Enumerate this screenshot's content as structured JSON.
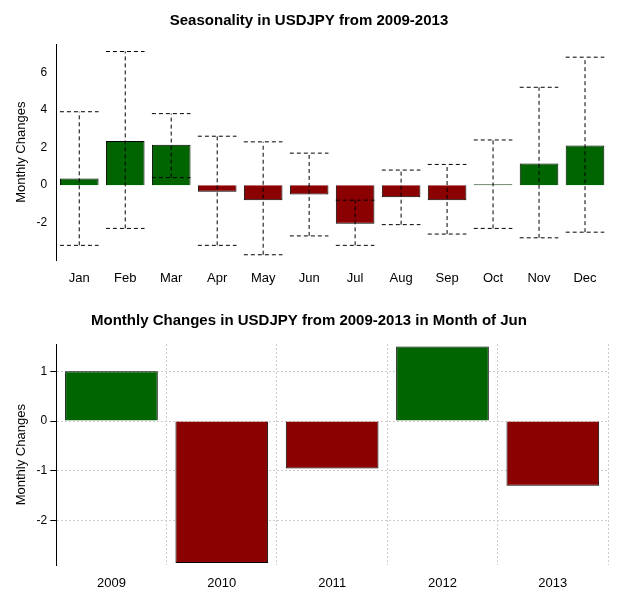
{
  "chart_data": [
    {
      "type": "bar",
      "title": "Seasonality in USDJPY from 2009-2013",
      "ylabel": "Monthly Changes",
      "categories": [
        "Jan",
        "Feb",
        "Mar",
        "Apr",
        "May",
        "Jun",
        "Jul",
        "Aug",
        "Sep",
        "Oct",
        "Nov",
        "Dec"
      ],
      "values": [
        0.35,
        2.35,
        2.15,
        -0.35,
        -0.8,
        -0.5,
        -2.05,
        -0.65,
        -0.8,
        0.05,
        1.15,
        2.1
      ],
      "error_low": [
        -3.2,
        -2.3,
        0.4,
        -3.2,
        -3.7,
        -2.7,
        -3.2,
        -2.1,
        -2.6,
        -2.3,
        -2.8,
        -2.5
      ],
      "error_high": [
        3.9,
        7.1,
        3.8,
        2.6,
        2.3,
        1.7,
        -0.8,
        0.8,
        1.1,
        2.4,
        5.2,
        6.8
      ],
      "colors": [
        "#006400",
        "#006400",
        "#006400",
        "#8b0000",
        "#8b0000",
        "#8b0000",
        "#8b0000",
        "#8b0000",
        "#8b0000",
        "#006400",
        "#006400",
        "#006400"
      ],
      "ylim": [
        -4,
        7.5
      ],
      "yticks": [
        -2,
        0,
        2,
        4,
        6
      ],
      "grid": false
    },
    {
      "type": "bar",
      "title": "Monthly Changes in USDJPY from 2009-2013 in Month of Jun",
      "ylabel": "Monthly Changes",
      "categories": [
        "2009",
        "2010",
        "2011",
        "2012",
        "2013"
      ],
      "values": [
        1.0,
        -2.85,
        -0.95,
        1.5,
        -1.3
      ],
      "colors": [
        "#006400",
        "#8b0000",
        "#8b0000",
        "#006400",
        "#8b0000"
      ],
      "ylim": [
        -2.9,
        1.55
      ],
      "yticks": [
        -2,
        -1,
        0,
        1
      ],
      "grid": true
    }
  ]
}
